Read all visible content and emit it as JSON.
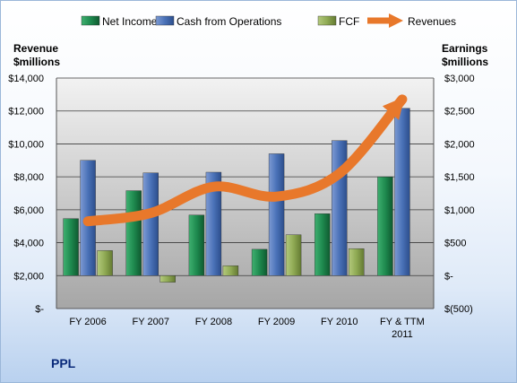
{
  "chart_data": {
    "type": "bar",
    "company": "PPL",
    "left_axis_title": [
      "Revenue",
      "$millions"
    ],
    "right_axis_title": [
      "Earnings",
      "$millions"
    ],
    "categories": [
      [
        "FY 2006"
      ],
      [
        "FY 2007"
      ],
      [
        "FY 2008"
      ],
      [
        "FY 2009"
      ],
      [
        "FY 2010"
      ],
      [
        "FY & TTM",
        "2011"
      ]
    ],
    "left_axis": {
      "min": 0,
      "max": 14000,
      "step": 2000,
      "tick_labels": [
        "$-",
        "$2,000",
        "$4,000",
        "$6,000",
        "$8,000",
        "$10,000",
        "$12,000",
        "$14,000"
      ]
    },
    "right_axis": {
      "min": -500,
      "max": 3000,
      "step": 500,
      "tick_labels": [
        "$(500)",
        "$-",
        "$500",
        "$1,000",
        "$1,500",
        "$2,000",
        "$2,500",
        "$3,000"
      ]
    },
    "grid": true,
    "legend_position": "top",
    "series": [
      {
        "name": "Net Income",
        "type": "bar",
        "axis": "right",
        "color": "#1e8a4f",
        "values": [
          865,
          1290,
          920,
          400,
          940,
          1500
        ]
      },
      {
        "name": "Cash from Operations",
        "type": "bar",
        "axis": "right",
        "color": "#4a72b8",
        "values": [
          1750,
          1560,
          1570,
          1850,
          2050,
          2540
        ]
      },
      {
        "name": "FCF",
        "type": "bar",
        "axis": "right",
        "color": "#8faa54",
        "values": [
          380,
          -100,
          150,
          620,
          410,
          0
        ]
      },
      {
        "name": "Revenues",
        "type": "line",
        "axis": "left",
        "color": "#e8782b",
        "values": [
          5300,
          5800,
          7400,
          6800,
          8200,
          12700
        ]
      }
    ]
  }
}
